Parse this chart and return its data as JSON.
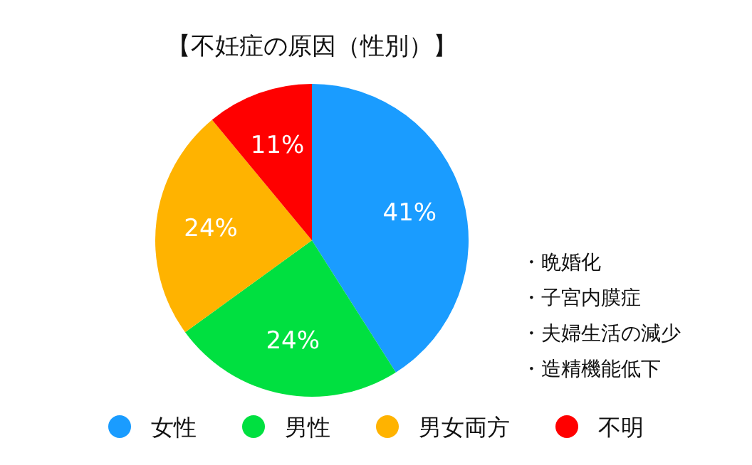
{
  "chart_data": {
    "type": "pie",
    "title": "【不妊症の原因（性別）】",
    "categories": [
      "女性",
      "男性",
      "男女両方",
      "不明"
    ],
    "values": [
      41,
      24,
      24,
      11
    ],
    "value_labels": [
      "41%",
      "24%",
      "24%",
      "11%"
    ],
    "colors": [
      "#1a9cff",
      "#00e040",
      "#ffb300",
      "#ff0000"
    ],
    "legend": "bottom",
    "annotations": [
      "・晩婚化",
      "・子宮内膜症",
      "・夫婦生活の減少",
      "・造精機能低下"
    ]
  }
}
